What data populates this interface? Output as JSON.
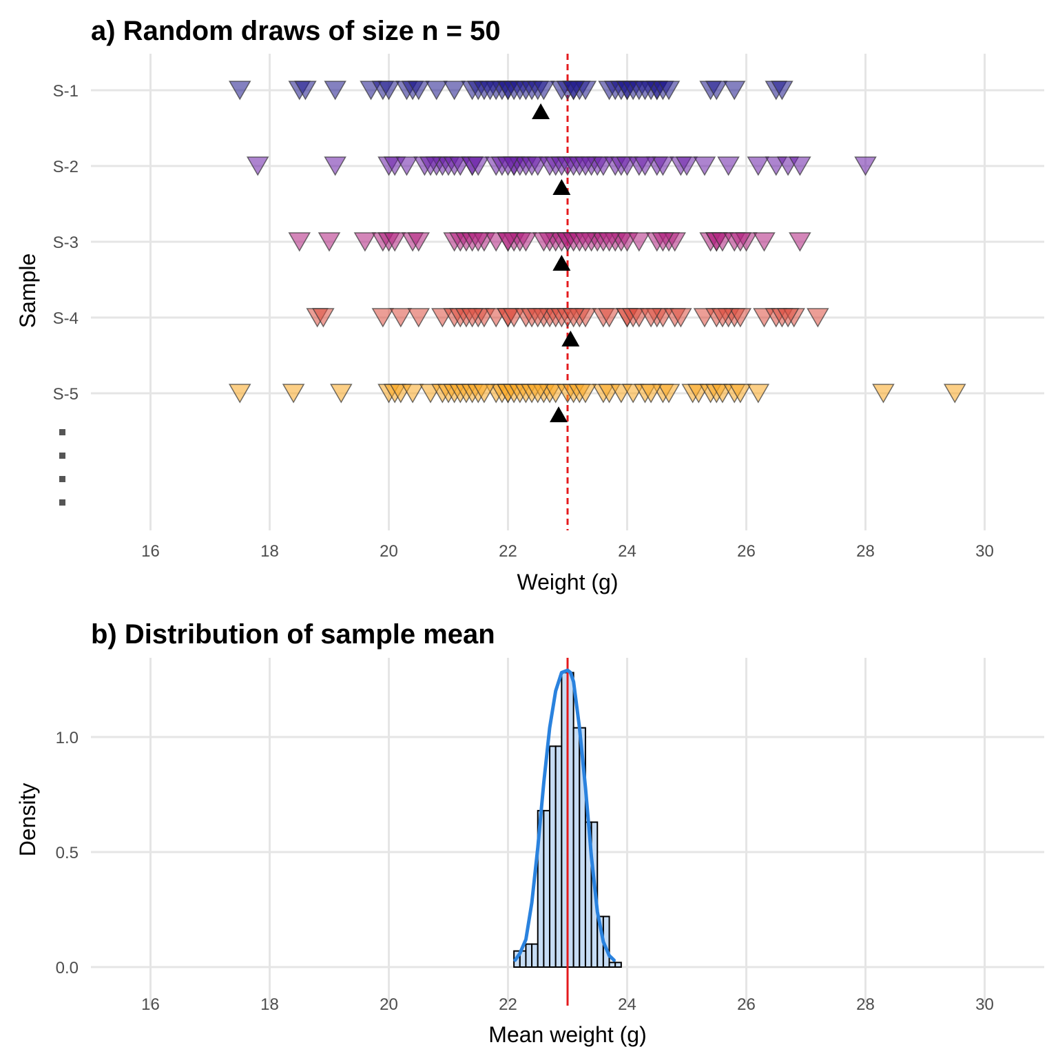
{
  "chart_data": [
    {
      "type": "scatter",
      "title": "a) Random draws of size n = 50",
      "xlabel": "Weight (g)",
      "ylabel": "Sample",
      "xlim": [
        15,
        31
      ],
      "x_ticks": [
        "16",
        "18",
        "20",
        "22",
        "24",
        "26",
        "28",
        "30"
      ],
      "grid": true,
      "reference_line": {
        "x": 23,
        "style": "dashed",
        "color": "#e41a1c"
      },
      "continuation_marker": "vertical dots below S-5",
      "series": [
        {
          "name": "S-1",
          "color": "#1f1a8c",
          "mean": 22.55,
          "values": [
            17.5,
            18.5,
            18.6,
            19.1,
            19.7,
            19.9,
            20.0,
            20.3,
            20.4,
            20.5,
            20.8,
            21.1,
            21.4,
            21.5,
            21.6,
            21.8,
            21.9,
            22.0,
            22.0,
            22.1,
            22.2,
            22.3,
            22.4,
            22.5,
            22.9,
            23.0,
            23.1,
            23.2,
            23.3,
            23.7,
            23.8,
            23.9,
            24.0,
            24.0,
            24.1,
            24.2,
            24.4,
            24.5,
            24.5,
            24.6,
            24.7,
            25.4,
            25.5,
            25.8,
            26.5,
            26.6,
            21.7,
            22.6,
            23.1,
            24.3
          ]
        },
        {
          "name": "S-2",
          "color": "#6a1fa8",
          "mean": 22.9,
          "values": [
            17.8,
            19.1,
            20.0,
            20.1,
            20.3,
            20.6,
            20.8,
            20.9,
            21.0,
            21.1,
            21.2,
            21.4,
            21.4,
            21.5,
            21.8,
            21.9,
            22.1,
            22.1,
            22.2,
            22.3,
            22.4,
            22.5,
            22.7,
            22.8,
            22.9,
            23.0,
            23.1,
            23.2,
            23.4,
            23.5,
            23.6,
            23.8,
            23.9,
            24.0,
            24.2,
            24.5,
            24.6,
            24.9,
            25.0,
            25.3,
            25.7,
            26.2,
            26.5,
            26.7,
            26.9,
            28.0,
            22.0,
            23.3,
            24.3,
            20.7
          ]
        },
        {
          "name": "S-3",
          "color": "#b0237f",
          "mean": 22.9,
          "values": [
            18.5,
            19.0,
            19.6,
            19.9,
            20.0,
            20.1,
            20.4,
            20.5,
            21.1,
            21.2,
            21.3,
            21.4,
            21.6,
            21.8,
            22.0,
            22.1,
            22.2,
            22.3,
            22.7,
            22.8,
            22.9,
            23.0,
            23.0,
            23.1,
            23.2,
            23.4,
            23.5,
            23.6,
            23.8,
            23.9,
            24.0,
            24.2,
            24.5,
            24.7,
            24.8,
            25.4,
            25.5,
            25.5,
            25.6,
            25.8,
            26.0,
            26.3,
            26.9,
            22.0,
            23.3,
            21.5,
            25.9,
            24.6,
            22.6,
            23.7
          ]
        },
        {
          "name": "S-4",
          "color": "#dc4e3f",
          "mean": 23.05,
          "values": [
            18.8,
            18.9,
            19.9,
            20.2,
            20.5,
            20.9,
            21.1,
            21.2,
            21.3,
            21.5,
            21.6,
            21.8,
            22.0,
            22.0,
            22.1,
            22.3,
            22.4,
            22.6,
            22.7,
            22.8,
            22.9,
            23.0,
            23.2,
            23.3,
            23.6,
            23.7,
            24.0,
            24.0,
            24.1,
            24.2,
            24.5,
            24.6,
            24.8,
            24.9,
            25.3,
            25.5,
            25.7,
            25.8,
            25.9,
            26.3,
            26.5,
            26.6,
            26.8,
            27.2,
            21.4,
            22.5,
            23.1,
            24.4,
            25.6,
            26.7
          ]
        },
        {
          "name": "S-5",
          "color": "#f9a822",
          "mean": 22.85,
          "values": [
            17.5,
            18.4,
            19.2,
            20.0,
            20.1,
            20.2,
            20.4,
            20.7,
            20.9,
            21.0,
            21.1,
            21.2,
            21.3,
            21.4,
            21.5,
            21.8,
            21.9,
            22.0,
            22.0,
            22.1,
            22.2,
            22.3,
            22.4,
            22.6,
            22.7,
            22.8,
            23.0,
            23.1,
            23.2,
            23.6,
            23.7,
            23.9,
            24.1,
            24.3,
            24.6,
            24.7,
            25.1,
            25.2,
            25.4,
            25.5,
            25.6,
            25.8,
            25.9,
            26.2,
            28.3,
            29.5,
            21.6,
            22.5,
            23.3,
            24.4
          ]
        }
      ]
    },
    {
      "type": "histogram",
      "title": "b) Distribution of sample mean",
      "xlabel": "Mean weight (g)",
      "ylabel": "Density",
      "xlim": [
        15,
        31
      ],
      "ylim": [
        0,
        1.3
      ],
      "x_ticks": [
        "16",
        "18",
        "20",
        "22",
        "24",
        "26",
        "28",
        "30"
      ],
      "y_ticks": [
        "0.0",
        "0.5",
        "1.0"
      ],
      "grid": true,
      "reference_line": {
        "x": 23,
        "style": "solid",
        "color": "#e41a1c"
      },
      "bin_width": 0.2,
      "bins": [
        {
          "x0": 22.1,
          "density": 0.07
        },
        {
          "x0": 22.3,
          "density": 0.1
        },
        {
          "x0": 22.5,
          "density": 0.68
        },
        {
          "x0": 22.7,
          "density": 0.96
        },
        {
          "x0": 22.9,
          "density": 1.28
        },
        {
          "x0": 23.1,
          "density": 1.04
        },
        {
          "x0": 23.3,
          "density": 0.63
        },
        {
          "x0": 23.5,
          "density": 0.22
        },
        {
          "x0": 23.7,
          "density": 0.02
        }
      ],
      "bar_fill": "#c6dcf4",
      "density_curve": {
        "color": "#2a82de",
        "x": [
          22.12,
          22.2,
          22.3,
          22.4,
          22.5,
          22.6,
          22.7,
          22.8,
          22.9,
          23.0,
          23.05,
          23.1,
          23.2,
          23.3,
          23.4,
          23.5,
          23.6,
          23.7,
          23.78
        ],
        "y": [
          0.03,
          0.06,
          0.12,
          0.28,
          0.52,
          0.8,
          1.04,
          1.2,
          1.28,
          1.29,
          1.28,
          1.24,
          1.04,
          0.78,
          0.48,
          0.24,
          0.11,
          0.05,
          0.03
        ]
      }
    }
  ]
}
